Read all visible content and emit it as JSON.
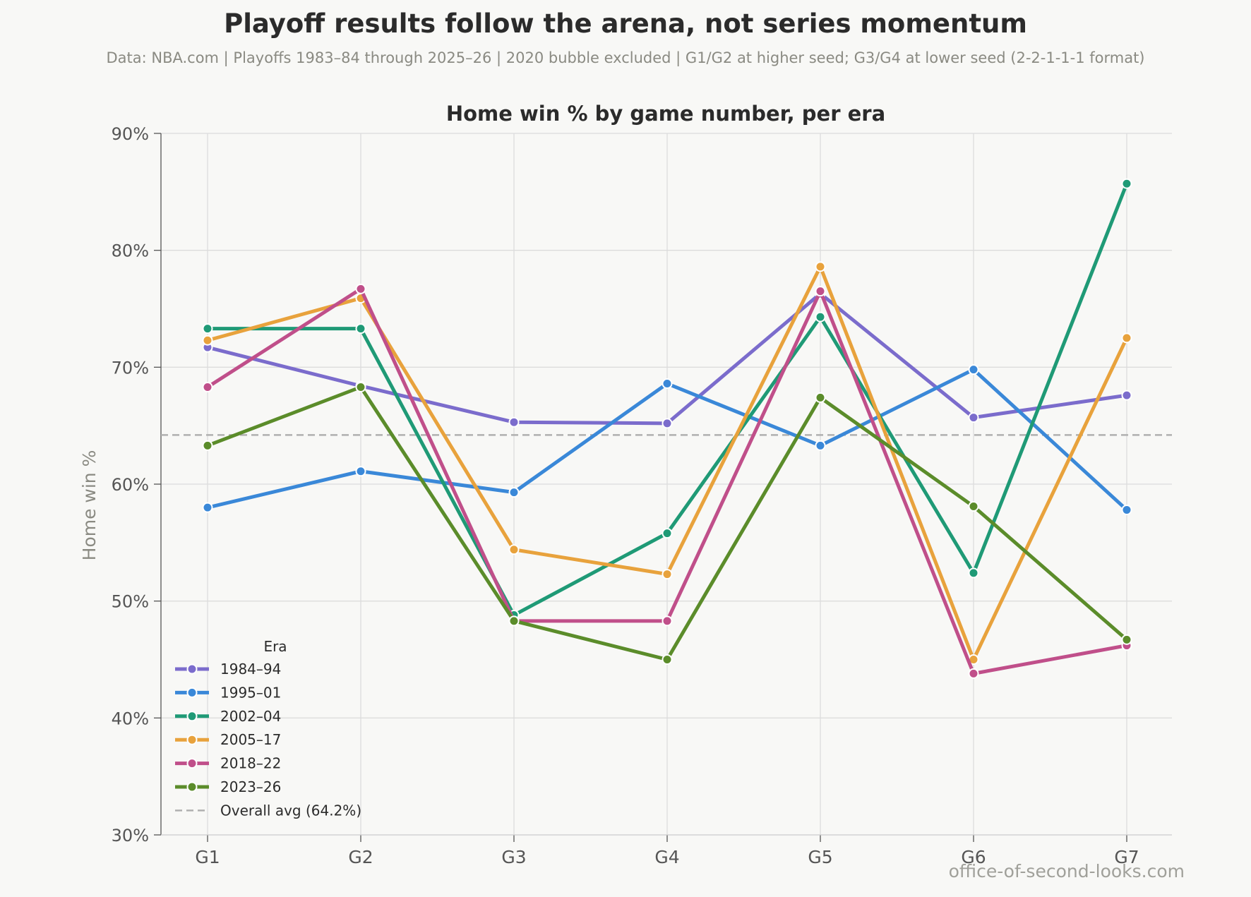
{
  "figure": {
    "title": "Playoff results follow the arena, not series momentum",
    "subtitle": "Data: NBA.com  |  Playoffs 1983–84 through 2025–26  |  2020 bubble excluded  |  G1/G2 at higher seed; G3/G4 at lower seed (2-2-1-1-1 format)",
    "watermark": "office-of-second-looks.com"
  },
  "chart_data": {
    "type": "line",
    "title": "Home win % by game number, per era",
    "xlabel": "",
    "ylabel": "Home win %",
    "categories": [
      "G1",
      "G2",
      "G3",
      "G4",
      "G5",
      "G6",
      "G7"
    ],
    "ylim": [
      30,
      90
    ],
    "yticks": [
      30,
      40,
      50,
      60,
      70,
      80,
      90
    ],
    "ytick_labels": [
      "30%",
      "40%",
      "50%",
      "60%",
      "70%",
      "80%",
      "90%"
    ],
    "grid": true,
    "legend": {
      "title": "Era",
      "position": "lower-left"
    },
    "series": [
      {
        "name": "1984–94",
        "color": "#7b6ccc",
        "values": [
          71.7,
          68.4,
          65.3,
          65.2,
          76.3,
          65.7,
          67.6
        ]
      },
      {
        "name": "1995–01",
        "color": "#3a88d8",
        "values": [
          58.0,
          61.1,
          59.3,
          68.6,
          63.3,
          69.8,
          57.8
        ]
      },
      {
        "name": "2002–04",
        "color": "#1f9a76",
        "values": [
          73.3,
          73.3,
          48.8,
          55.8,
          74.3,
          52.4,
          85.7
        ]
      },
      {
        "name": "2005–17",
        "color": "#e8a23c",
        "values": [
          72.3,
          75.9,
          54.4,
          52.3,
          78.6,
          45.0,
          72.5
        ]
      },
      {
        "name": "2018–22",
        "color": "#c04f8a",
        "values": [
          68.3,
          76.7,
          48.3,
          48.3,
          76.5,
          43.8,
          46.2
        ]
      },
      {
        "name": "2023–26",
        "color": "#5b8c2a",
        "values": [
          63.3,
          68.3,
          48.3,
          45.0,
          67.4,
          58.1,
          46.7
        ]
      }
    ],
    "reference_line": {
      "name": "Overall avg (64.2%)",
      "value": 64.2,
      "color": "#b0b0b0",
      "style": "dashed"
    }
  }
}
